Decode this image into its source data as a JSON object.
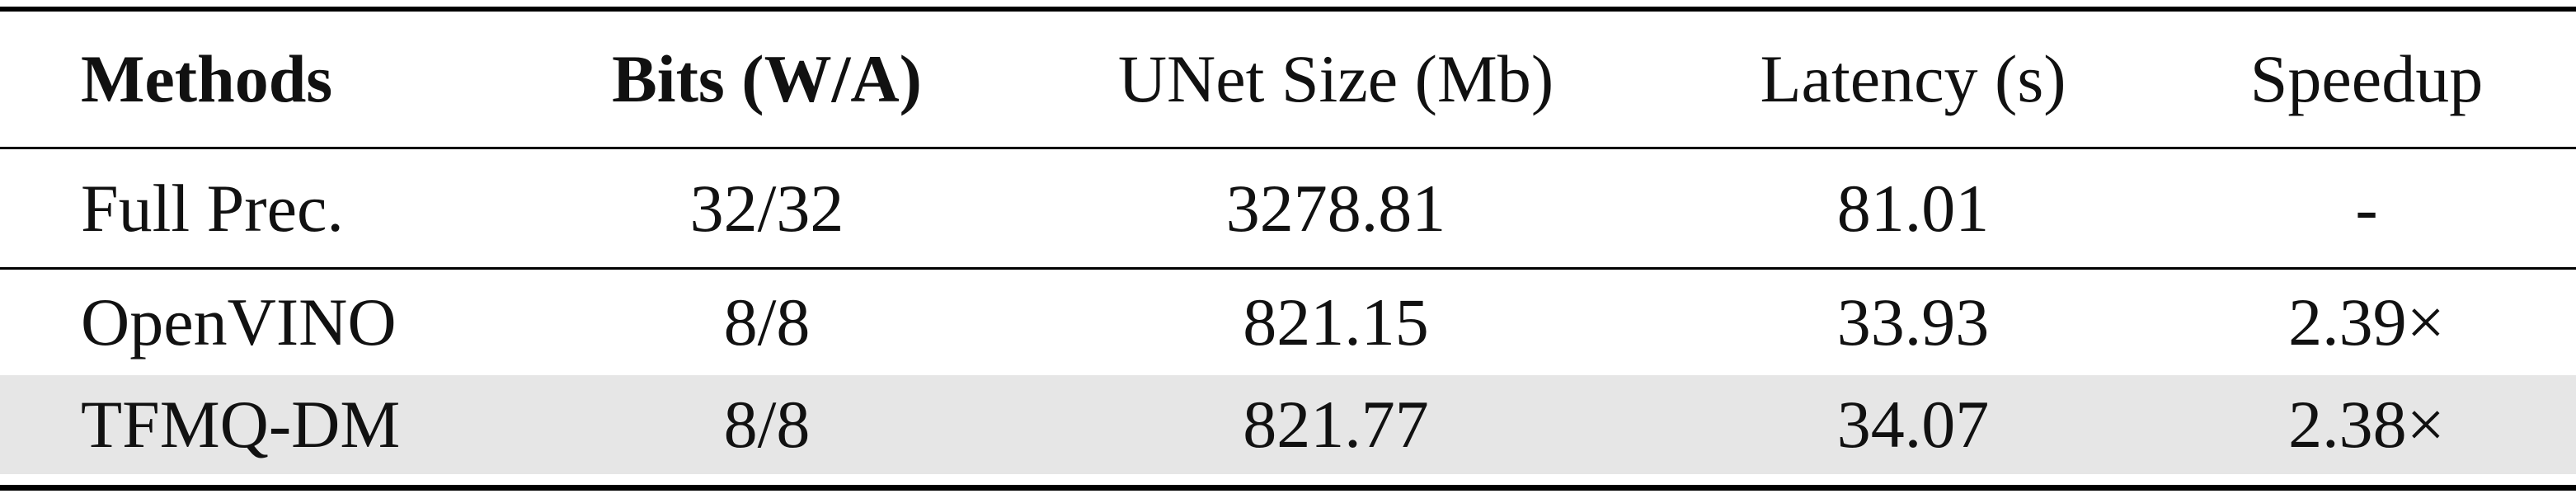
{
  "table": {
    "headers": {
      "methods": "Methods",
      "bits": "Bits (W/A)",
      "unet_size": "UNet Size (Mb)",
      "latency": "Latency (s)",
      "speedup": "Speedup"
    },
    "rows": [
      {
        "method": "Full Prec.",
        "bits": "32/32",
        "unet_size": "3278.81",
        "latency": "81.01",
        "speedup": "-"
      },
      {
        "method": "OpenVINO",
        "bits": "8/8",
        "unet_size": "821.15",
        "latency": "33.93",
        "speedup": "2.39×"
      },
      {
        "method": "TFMQ-DM",
        "bits": "8/8",
        "unet_size": "821.77",
        "latency": "34.07",
        "speedup": "2.38×"
      }
    ],
    "highlight_color": "#e6e6e6"
  }
}
